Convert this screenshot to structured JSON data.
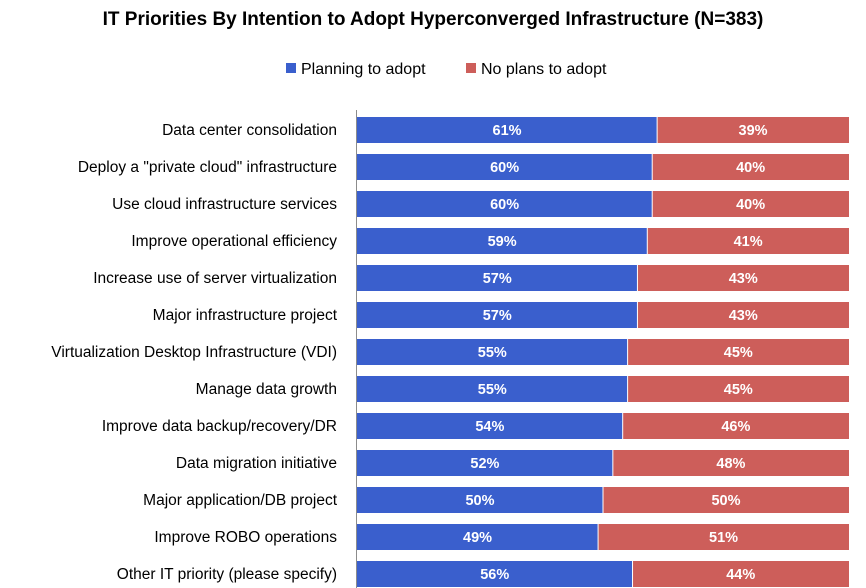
{
  "chart_data": {
    "type": "bar",
    "orientation": "horizontal",
    "stacked": "percent",
    "title": "IT Priorities By Intention to Adopt Hyperconverged Infrastructure (N=383)",
    "legend_position": "top",
    "categories": [
      "Data center consolidation",
      "Deploy a \"private cloud\" infrastructure",
      "Use cloud infrastructure services",
      "Improve operational efficiency",
      "Increase use of server virtualization",
      "Major infrastructure project",
      "Virtualization Desktop Infrastructure (VDI)",
      "Manage data growth",
      "Improve data backup/recovery/DR",
      "Data migration initiative",
      "Major application/DB project",
      "Improve ROBO operations",
      "Other IT priority (please specify)"
    ],
    "series": [
      {
        "name": "Planning to adopt",
        "color": "#3a5fcd",
        "values": [
          61,
          60,
          60,
          59,
          57,
          57,
          55,
          55,
          54,
          52,
          50,
          49,
          56
        ],
        "labels": [
          "61%",
          "60%",
          "60%",
          "59%",
          "57%",
          "57%",
          "55%",
          "55%",
          "54%",
          "52%",
          "50%",
          "49%",
          "56%"
        ]
      },
      {
        "name": "No plans to adopt",
        "color": "#cd5e5a",
        "values": [
          39,
          40,
          40,
          41,
          43,
          43,
          45,
          45,
          46,
          48,
          50,
          51,
          44
        ],
        "labels": [
          "39%",
          "40%",
          "40%",
          "41%",
          "43%",
          "43%",
          "45%",
          "45%",
          "46%",
          "48%",
          "50%",
          "51%",
          "44%"
        ]
      }
    ],
    "xlim": [
      0,
      100
    ],
    "grid": false
  }
}
